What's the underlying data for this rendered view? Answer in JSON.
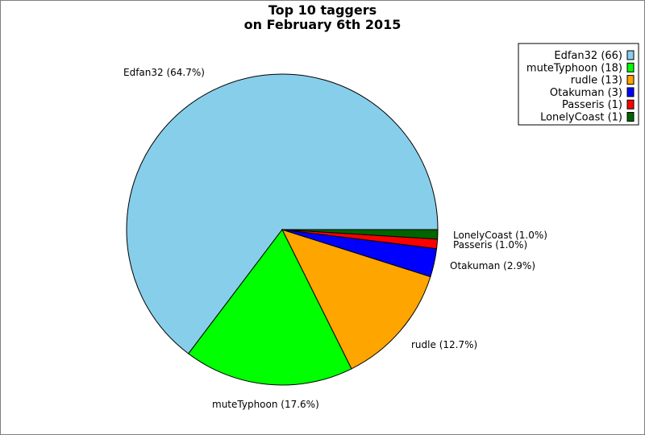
{
  "chart_data": {
    "type": "pie",
    "title_lines": [
      "Top 10 taggers",
      "on February 6th 2015"
    ],
    "slices": [
      {
        "name": "Edfan32",
        "value": 66,
        "percent_label": "Edfan32 (64.7%)",
        "legend_label": "Edfan32 (66)",
        "color": "#87ceeb"
      },
      {
        "name": "muteTyphoon",
        "value": 18,
        "percent_label": "muteTyphoon (17.6%)",
        "legend_label": "muteTyphoon (18)",
        "color": "#00ff00"
      },
      {
        "name": "rudle",
        "value": 13,
        "percent_label": "rudle (12.7%)",
        "legend_label": "rudle (13)",
        "color": "#ffa500"
      },
      {
        "name": "Otakuman",
        "value": 3,
        "percent_label": "Otakuman (2.9%)",
        "legend_label": "Otakuman (3)",
        "color": "#0000ff"
      },
      {
        "name": "Passeris",
        "value": 1,
        "percent_label": "Passeris (1.0%)",
        "legend_label": "Passeris (1)",
        "color": "#ff0000"
      },
      {
        "name": "LonelyCoast",
        "value": 1,
        "percent_label": "LonelyCoast (1.0%)",
        "legend_label": "LonelyCoast (1)",
        "color": "#006400"
      }
    ],
    "legend_position": "top-right",
    "start": "east",
    "direction": "counterclockwise"
  }
}
